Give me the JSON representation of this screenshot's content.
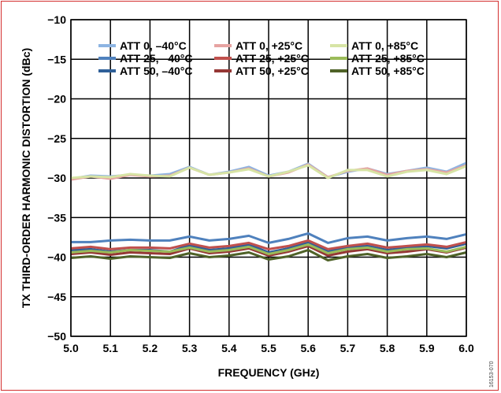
{
  "chart_data": {
    "type": "line",
    "title": "",
    "xlabel": "FREQUENCY (GHz)",
    "ylabel": "TX THIRD-ORDER HARMONIC DISTORTION (dBc)",
    "xlim": [
      5.0,
      6.0
    ],
    "ylim": [
      -50,
      -10
    ],
    "xticks": [
      "5.0",
      "5.1",
      "5.2",
      "5.3",
      "5.4",
      "5.5",
      "5.6",
      "5.7",
      "5.8",
      "5.9",
      "6.0"
    ],
    "yticks": [
      "−10",
      "−15",
      "−20",
      "−25",
      "−30",
      "−35",
      "−40",
      "−45",
      "−50"
    ],
    "grid": true,
    "legend_position": "top",
    "figure_id": "16153-070",
    "x": [
      5.0,
      5.05,
      5.1,
      5.15,
      5.2,
      5.25,
      5.3,
      5.35,
      5.4,
      5.45,
      5.5,
      5.55,
      5.6,
      5.65,
      5.7,
      5.75,
      5.8,
      5.85,
      5.9,
      5.95,
      6.0
    ],
    "series": [
      {
        "name": "ATT 0, –40°C",
        "color": "#8db4e2",
        "values": [
          -30.1,
          -29.7,
          -29.8,
          -29.6,
          -29.7,
          -29.5,
          -28.6,
          -29.6,
          -29.2,
          -28.6,
          -29.7,
          -29.2,
          -28.2,
          -29.9,
          -29.2,
          -28.8,
          -29.5,
          -29.1,
          -28.7,
          -29.2,
          -28.1
        ]
      },
      {
        "name": "ATT 25, –40°C",
        "color": "#4f81bd",
        "values": [
          -38.1,
          -38.1,
          -37.9,
          -37.8,
          -37.9,
          -37.9,
          -37.4,
          -37.9,
          -37.7,
          -37.3,
          -38.2,
          -37.7,
          -37.0,
          -38.2,
          -37.6,
          -37.4,
          -37.9,
          -37.6,
          -37.4,
          -37.7,
          -37.1
        ]
      },
      {
        "name": "ATT 50, –40°C",
        "color": "#2f5f98",
        "values": [
          -39.1,
          -39.0,
          -39.3,
          -39.1,
          -39.1,
          -39.3,
          -38.5,
          -39.1,
          -38.9,
          -38.4,
          -39.4,
          -38.9,
          -38.1,
          -39.3,
          -38.8,
          -38.6,
          -39.1,
          -38.8,
          -38.6,
          -38.9,
          -38.3
        ]
      },
      {
        "name": "ATT 0, +25°C",
        "color": "#e6a3a1",
        "values": [
          -30.2,
          -29.8,
          -30.1,
          -29.6,
          -29.8,
          -29.7,
          -28.7,
          -29.6,
          -29.3,
          -28.8,
          -29.8,
          -29.3,
          -28.3,
          -29.9,
          -29.1,
          -28.8,
          -29.6,
          -29.1,
          -28.9,
          -29.3,
          -28.4
        ]
      },
      {
        "name": "ATT 25, +25°C",
        "color": "#c0504d",
        "values": [
          -38.9,
          -38.7,
          -39.0,
          -38.8,
          -38.8,
          -38.9,
          -38.3,
          -38.8,
          -38.6,
          -38.2,
          -39.0,
          -38.6,
          -37.9,
          -39.0,
          -38.6,
          -38.3,
          -38.8,
          -38.6,
          -38.4,
          -38.7,
          -38.1
        ]
      },
      {
        "name": "ATT 50, +25°C",
        "color": "#953735",
        "values": [
          -39.6,
          -39.4,
          -39.7,
          -39.4,
          -39.5,
          -39.6,
          -38.9,
          -39.5,
          -39.3,
          -38.9,
          -39.8,
          -39.3,
          -38.6,
          -39.8,
          -39.3,
          -39.0,
          -39.5,
          -39.3,
          -39.0,
          -39.4,
          -38.8
        ]
      },
      {
        "name": "ATT 0, +85°C",
        "color": "#d7e4a5",
        "values": [
          -30.0,
          -29.8,
          -29.9,
          -29.5,
          -29.7,
          -29.8,
          -28.7,
          -29.6,
          -29.3,
          -28.9,
          -29.8,
          -29.2,
          -28.4,
          -30.0,
          -29.0,
          -29.0,
          -29.8,
          -29.2,
          -29.0,
          -29.5,
          -28.5
        ]
      },
      {
        "name": "ATT 25, +85°C",
        "color": "#9bbb59",
        "values": [
          -39.4,
          -39.2,
          -39.4,
          -39.1,
          -39.2,
          -39.3,
          -38.8,
          -39.3,
          -39.1,
          -38.7,
          -39.6,
          -39.1,
          -38.4,
          -39.5,
          -39.0,
          -38.8,
          -39.3,
          -39.0,
          -38.9,
          -39.3,
          -38.7
        ]
      },
      {
        "name": "ATT 50, +85°C",
        "color": "#4f6228",
        "values": [
          -40.1,
          -39.9,
          -40.2,
          -39.9,
          -40.0,
          -40.1,
          -39.5,
          -40.0,
          -39.8,
          -39.4,
          -40.3,
          -39.9,
          -39.1,
          -40.4,
          -39.9,
          -39.6,
          -40.1,
          -39.9,
          -39.6,
          -40.0,
          -39.4
        ]
      }
    ]
  }
}
